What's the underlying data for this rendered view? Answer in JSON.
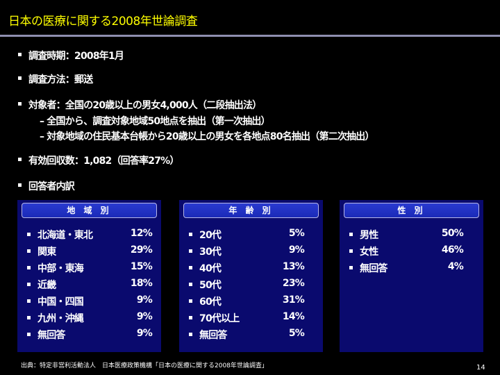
{
  "title": "日本の医療に関する2008年世論調査",
  "bullets": [
    "調査時期：2008年1月",
    "調査方法：郵送",
    "対象者：全国の20歳以上の男女4,000人（二段抽出法）",
    "有効回収数：1,082（回答率27%）",
    "回答者内訳"
  ],
  "sub_bullets": [
    "–  全国から、調査対象地域50地点を抽出（第一次抽出）",
    "–  対象地域の住民基本台帳から20歳以上の男女を各地点80名抽出（第二次抽出）"
  ],
  "panels": {
    "region": {
      "header": "地 域 別",
      "items": [
        {
          "label": "北海道・東北",
          "value": "12%"
        },
        {
          "label": "関東",
          "value": "29%"
        },
        {
          "label": "中部・東海",
          "value": "15%"
        },
        {
          "label": "近畿",
          "value": "18%"
        },
        {
          "label": "中国・四国",
          "value": "9%"
        },
        {
          "label": "九州・沖縄",
          "value": "9%"
        },
        {
          "label": "無回答",
          "value": "9%"
        }
      ]
    },
    "age": {
      "header": "年 齢 別",
      "items": [
        {
          "label": "20代",
          "value": "5%"
        },
        {
          "label": "30代",
          "value": "9%"
        },
        {
          "label": "40代",
          "value": "13%"
        },
        {
          "label": "50代",
          "value": "23%"
        },
        {
          "label": "60代",
          "value": "31%"
        },
        {
          "label": "70代以上",
          "value": "14%"
        },
        {
          "label": "無回答",
          "value": "5%"
        }
      ]
    },
    "sex": {
      "header": "性 別",
      "items": [
        {
          "label": "男性",
          "value": "50%"
        },
        {
          "label": "女性",
          "value": "46%"
        },
        {
          "label": "無回答",
          "value": "4%"
        }
      ]
    }
  },
  "footer": "出典：特定非営利活動法人　日本医療政策機構「日本の医療に関する2008年世論調査」",
  "page_number": "14",
  "colors": {
    "title": "#ffff00",
    "panel_bg": "#0a0a6e",
    "header_bg": "#1a2ab8"
  }
}
